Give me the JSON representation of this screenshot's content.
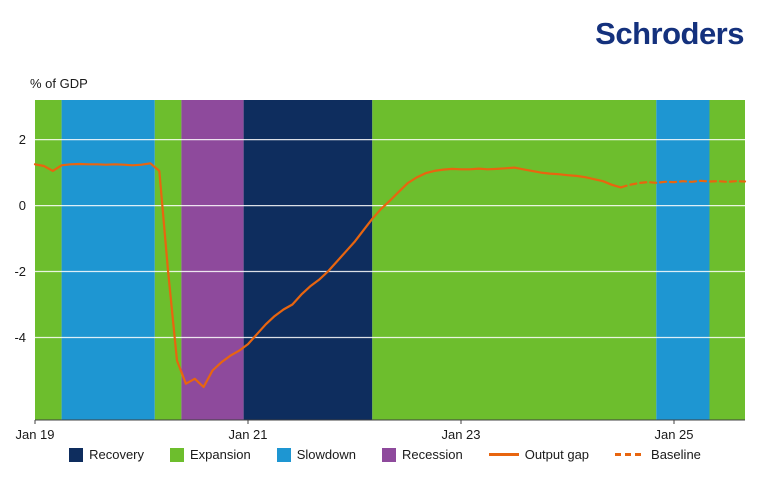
{
  "header": {
    "logo_text": "Schroders"
  },
  "colors": {
    "recovery": "#0e2d5e",
    "expansion": "#6dbe2d",
    "slowdown": "#1e96d2",
    "recession": "#8e4a9c",
    "line": "#e8650f",
    "grid": "#ffffff",
    "axis": "#404040",
    "logo": "#14317d"
  },
  "chart_data": {
    "type": "line",
    "title": "",
    "ylabel": "% of GDP",
    "x_unit": "months_since_jan_2019",
    "x_range": [
      0,
      80
    ],
    "y_range": [
      -6.5,
      3.2
    ],
    "x_ticks": [
      {
        "t": 0,
        "label": "Jan 19"
      },
      {
        "t": 24,
        "label": "Jan 21"
      },
      {
        "t": 48,
        "label": "Jan 23"
      },
      {
        "t": 72,
        "label": "Jan 25"
      }
    ],
    "y_ticks": [
      2,
      0,
      -2,
      -4
    ],
    "grid": "on",
    "legend_position": "bottom",
    "phase_bands": [
      {
        "phase": "Expansion",
        "start": 0,
        "end": 3,
        "color_key": "expansion"
      },
      {
        "phase": "Slowdown",
        "start": 3,
        "end": 13.5,
        "color_key": "slowdown"
      },
      {
        "phase": "Expansion",
        "start": 13.5,
        "end": 16.5,
        "color_key": "expansion"
      },
      {
        "phase": "Recession",
        "start": 16.5,
        "end": 23.5,
        "color_key": "recession"
      },
      {
        "phase": "Recovery",
        "start": 23.5,
        "end": 38,
        "color_key": "recovery"
      },
      {
        "phase": "Expansion",
        "start": 38,
        "end": 70,
        "color_key": "expansion"
      },
      {
        "phase": "Slowdown",
        "start": 70,
        "end": 76,
        "color_key": "slowdown"
      },
      {
        "phase": "Expansion",
        "start": 76,
        "end": 80,
        "color_key": "expansion"
      }
    ],
    "series": [
      {
        "name": "Output gap",
        "style": "solid",
        "color_key": "line",
        "points": [
          [
            0,
            1.25
          ],
          [
            1,
            1.2
          ],
          [
            2,
            1.05
          ],
          [
            3,
            1.22
          ],
          [
            4,
            1.25
          ],
          [
            5,
            1.26
          ],
          [
            6,
            1.25
          ],
          [
            7,
            1.25
          ],
          [
            8,
            1.24
          ],
          [
            9,
            1.25
          ],
          [
            10,
            1.24
          ],
          [
            11,
            1.22
          ],
          [
            12,
            1.24
          ],
          [
            13,
            1.28
          ],
          [
            14,
            1.05
          ],
          [
            15,
            -2.0
          ],
          [
            16,
            -4.7
          ],
          [
            17,
            -5.4
          ],
          [
            18,
            -5.25
          ],
          [
            19,
            -5.5
          ],
          [
            20,
            -5.0
          ],
          [
            21,
            -4.75
          ],
          [
            22,
            -4.55
          ],
          [
            23,
            -4.4
          ],
          [
            24,
            -4.2
          ],
          [
            25,
            -3.9
          ],
          [
            26,
            -3.6
          ],
          [
            27,
            -3.35
          ],
          [
            28,
            -3.15
          ],
          [
            29,
            -3.0
          ],
          [
            30,
            -2.7
          ],
          [
            31,
            -2.45
          ],
          [
            32,
            -2.25
          ],
          [
            33,
            -2.0
          ],
          [
            34,
            -1.7
          ],
          [
            35,
            -1.4
          ],
          [
            36,
            -1.1
          ],
          [
            37,
            -0.75
          ],
          [
            38,
            -0.4
          ],
          [
            39,
            -0.1
          ],
          [
            40,
            0.15
          ],
          [
            41,
            0.42
          ],
          [
            42,
            0.68
          ],
          [
            43,
            0.85
          ],
          [
            44,
            0.98
          ],
          [
            45,
            1.05
          ],
          [
            46,
            1.09
          ],
          [
            47,
            1.11
          ],
          [
            48,
            1.1
          ],
          [
            49,
            1.1
          ],
          [
            50,
            1.12
          ],
          [
            51,
            1.1
          ],
          [
            52,
            1.11
          ],
          [
            53,
            1.13
          ],
          [
            54,
            1.15
          ],
          [
            55,
            1.1
          ],
          [
            56,
            1.05
          ],
          [
            57,
            1.0
          ],
          [
            58,
            0.97
          ],
          [
            59,
            0.95
          ],
          [
            60,
            0.92
          ],
          [
            61,
            0.9
          ],
          [
            62,
            0.86
          ],
          [
            63,
            0.8
          ],
          [
            64,
            0.74
          ],
          [
            65,
            0.63
          ],
          [
            66,
            0.55
          ]
        ]
      },
      {
        "name": "Baseline",
        "style": "dashed",
        "color_key": "line",
        "points": [
          [
            66,
            0.55
          ],
          [
            67,
            0.63
          ],
          [
            68,
            0.68
          ],
          [
            69,
            0.71
          ],
          [
            70,
            0.69
          ],
          [
            71,
            0.72
          ],
          [
            72,
            0.71
          ],
          [
            73,
            0.74
          ],
          [
            74,
            0.72
          ],
          [
            75,
            0.75
          ],
          [
            76,
            0.73
          ],
          [
            77,
            0.74
          ],
          [
            78,
            0.72
          ],
          [
            79,
            0.74
          ],
          [
            80,
            0.73
          ]
        ]
      }
    ]
  },
  "legend": {
    "items": [
      {
        "label": "Recovery",
        "swatch": "square",
        "color_key": "recovery"
      },
      {
        "label": "Expansion",
        "swatch": "square",
        "color_key": "expansion"
      },
      {
        "label": "Slowdown",
        "swatch": "square",
        "color_key": "slowdown"
      },
      {
        "label": "Recession",
        "swatch": "square",
        "color_key": "recession"
      },
      {
        "label": "Output gap",
        "swatch": "line",
        "color_key": "line"
      },
      {
        "label": "Baseline",
        "swatch": "dashed-line",
        "color_key": "line"
      }
    ]
  }
}
